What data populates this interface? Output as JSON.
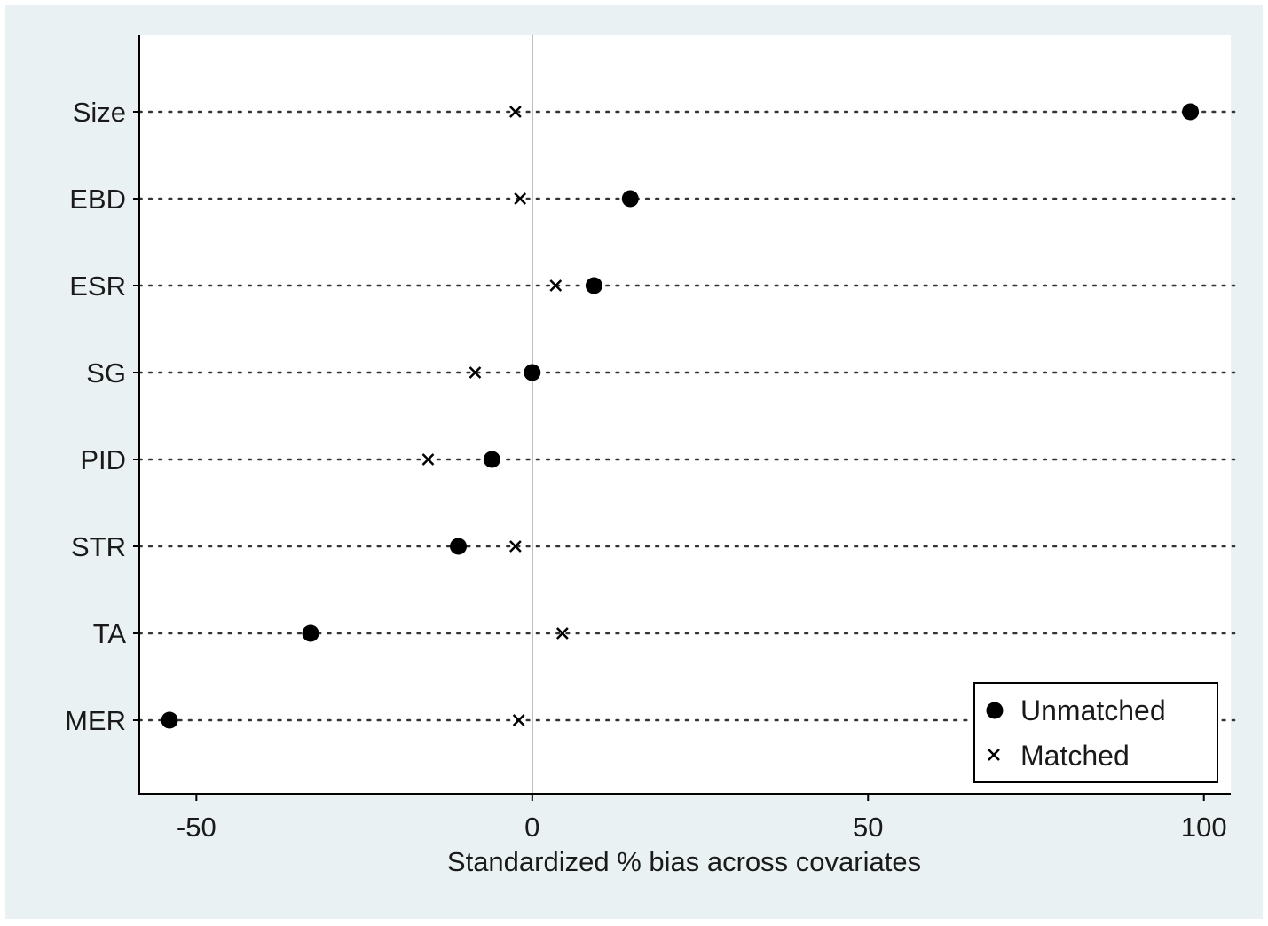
{
  "chart_data": {
    "type": "scatter",
    "title": "",
    "xlabel": "Standardized % bias across covariates",
    "ylabel": "",
    "xlim": [
      -58.5,
      104
    ],
    "xticks": [
      -50,
      0,
      50,
      100
    ],
    "grid": false,
    "legend_position": "bottom-right",
    "categories": [
      "Size",
      "EBD",
      "ESR",
      "SG",
      "PID",
      "STR",
      "TA",
      "MER"
    ],
    "series": [
      {
        "name": "Unmatched",
        "marker": "circle",
        "color": "#000000",
        "values": [
          98,
          14.6,
          9.2,
          0,
          -6,
          -11,
          -33,
          -54
        ]
      },
      {
        "name": "Matched",
        "marker": "x",
        "color": "#000000",
        "values": [
          -2.5,
          -1.8,
          3.5,
          -8.5,
          -15.5,
          -2.5,
          4.5,
          -2
        ]
      }
    ]
  }
}
